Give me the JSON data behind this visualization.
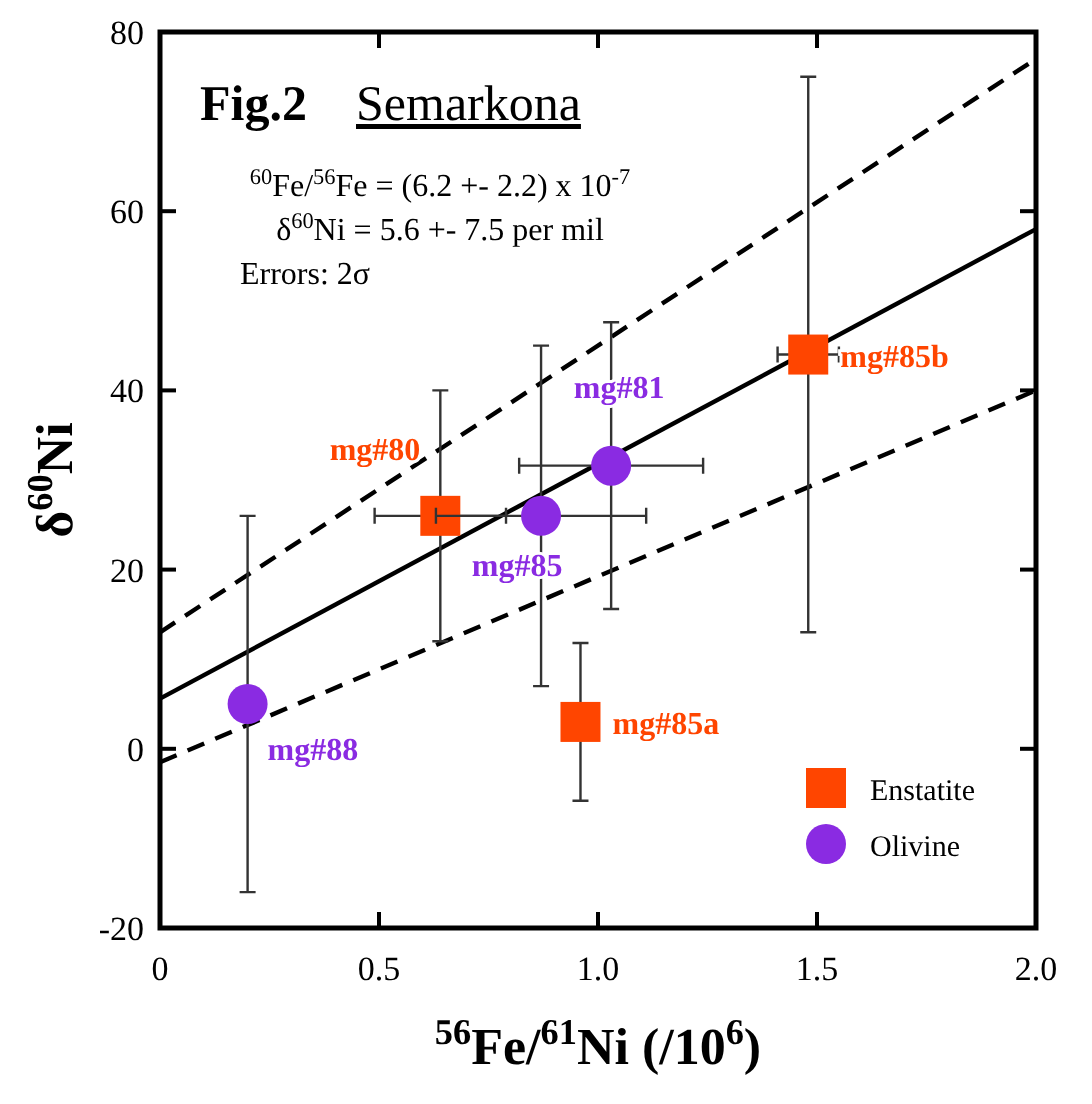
{
  "chart_data": {
    "type": "scatter",
    "title": "Fig.2",
    "subtitle": "Semarkona",
    "xlabel": "$^{56}$Fe/$^{61}$Ni (/10$^{6}$)",
    "ylabel": "δ$^{60}$Ni",
    "xlim": [
      0,
      2
    ],
    "ylim": [
      -20,
      80
    ],
    "xticks": [
      0,
      0.5,
      {
        "value": 1,
        "label": "1.0"
      },
      1.5,
      {
        "value": 2,
        "label": "2.0"
      }
    ],
    "yticks": [
      -20,
      0,
      20,
      40,
      60,
      80
    ],
    "grid": false,
    "legend": "bottom right",
    "series": [
      {
        "name": "Enstatite",
        "color": "#ff4500",
        "marker": "square",
        "x": [
          0.64,
          0.96,
          1.48
        ],
        "values": [
          26,
          3,
          44
        ],
        "errors": [
          14,
          8.8,
          31
        ],
        "xerrors": [
          0.15,
          null,
          0.07
        ]
      },
      {
        "name": "Olivine",
        "color": "#8a2be2",
        "marker": "circle",
        "x": [
          0.2,
          0.87,
          1.03
        ],
        "values": [
          5,
          26,
          31.6
        ],
        "errors": [
          21,
          19,
          16
        ],
        "xerrors": [
          null,
          0.24,
          0.21
        ]
      },
      {
        "type": "line",
        "color": "#000000",
        "line_style": "solid",
        "x": [
          0,
          2
        ],
        "values": [
          5.6,
          58
        ]
      },
      {
        "type": "line",
        "color": "#000000",
        "line_style": "dashed",
        "x": [
          0,
          2
        ],
        "values": [
          13,
          77
        ]
      },
      {
        "type": "line",
        "color": "#000000",
        "line_style": "dashed",
        "x": [
          0,
          2
        ],
        "values": [
          -1.5,
          40
        ]
      }
    ],
    "annotations": [
      "$^{60}$Fe/$^{56}$Fe = (6.2 +- 2.2) x 10$^{-7}$",
      "δ$^{60}$Ni = 5.6 +- 7.5 per mil",
      "Errors: 2σ",
      {
        "text": "mg#80",
        "x": 0.64,
        "y": 26
      },
      {
        "text": "mg#85a",
        "x": 0.96,
        "y": 3
      },
      {
        "text": "mg#85b",
        "x": 1.48,
        "y": 44
      },
      {
        "text": "mg#88",
        "x": 0.2,
        "y": 5
      },
      {
        "text": "mg#85",
        "x": 0.87,
        "y": 26
      },
      {
        "text": "mg#81",
        "x": 1.03,
        "y": 31.6
      }
    ]
  }
}
